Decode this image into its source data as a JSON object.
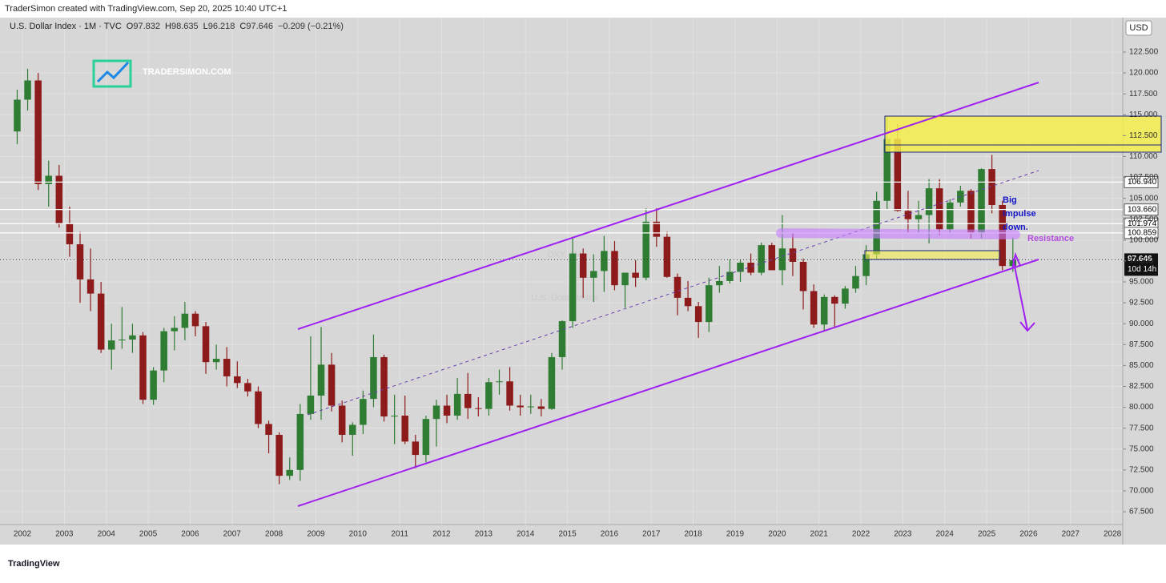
{
  "page": {
    "header": "TraderSimon created with TradingView.com, Sep 20, 2025 10:40 UTC+1",
    "logo": "TRADERSIMON.COM",
    "brand": "TradingView"
  },
  "chart_data": {
    "type": "candlestick",
    "symbol": "U.S. Dollar Index · 1M · TVC",
    "legend": [
      {
        "label": "O",
        "value": "97.832"
      },
      {
        "label": "H",
        "value": "98.635"
      },
      {
        "label": "L",
        "value": "96.218"
      },
      {
        "label": "C",
        "value": "97.646"
      },
      {
        "label": "",
        "value": "−0.209 (−0.21%)"
      }
    ],
    "watermark": [
      "DXY, 1M",
      "U.S. Dollar Index"
    ],
    "currency": "USD",
    "annotations": {
      "impulse": [
        "Big",
        "impulse",
        "down."
      ],
      "resistance": "Resistance"
    },
    "up_color": "#2e7d32",
    "down_color": "#8e1b1b",
    "grid": true,
    "xlim": [
      2001.465,
      2028.246
    ],
    "xticks": [
      2002,
      2003,
      2004,
      2005,
      2006,
      2007,
      2008,
      2009,
      2010,
      2011,
      2012,
      2013,
      2014,
      2015,
      2016,
      2017,
      2018,
      2019,
      2020,
      2021,
      2022,
      2023,
      2024,
      2025,
      2026,
      2027,
      2028
    ],
    "ylim": [
      65.97,
      126.62
    ],
    "yticks": [
      {
        "value": 67.5,
        "label": "67.500"
      },
      {
        "value": 70,
        "label": "70.000"
      },
      {
        "value": 72.5,
        "label": "72.500"
      },
      {
        "value": 75,
        "label": "75.000"
      },
      {
        "value": 77.5,
        "label": "77.500"
      },
      {
        "value": 80,
        "label": "80.000"
      },
      {
        "value": 82.5,
        "label": "82.500"
      },
      {
        "value": 85,
        "label": "85.000"
      },
      {
        "value": 87.5,
        "label": "87.500"
      },
      {
        "value": 90,
        "label": "90.000"
      },
      {
        "value": 92.5,
        "label": "92.500"
      },
      {
        "value": 95,
        "label": "95.000"
      },
      {
        "value": 97.5,
        "label": "97.500"
      },
      {
        "value": 100,
        "label": "100.000"
      },
      {
        "value": 102.5,
        "label": "102.500"
      },
      {
        "value": 105,
        "label": "105.000"
      },
      {
        "value": 107.5,
        "label": "107.500"
      },
      {
        "value": 110,
        "label": "110.000"
      },
      {
        "value": 112.5,
        "label": "112.500"
      },
      {
        "value": 115,
        "label": "115.000"
      },
      {
        "value": 117.5,
        "label": "117.500"
      },
      {
        "value": 120,
        "label": "120.000"
      },
      {
        "value": 122.5,
        "label": "122.500"
      }
    ],
    "price_lines": [
      {
        "value": 106.94,
        "label": "106.940"
      },
      {
        "value": 103.66,
        "label": "103.660"
      },
      {
        "value": 101.974,
        "label": "101.974"
      },
      {
        "value": 100.859,
        "label": "100.859"
      }
    ],
    "last_price": {
      "value": 97.646,
      "label": "97.646",
      "countdown": "10d 14h"
    },
    "x": [
      2001.75,
      2002,
      2002.25,
      2002.5,
      2002.75,
      2003,
      2003.25,
      2003.5,
      2003.75,
      2004,
      2004.25,
      2004.5,
      2004.75,
      2005,
      2005.25,
      2005.5,
      2005.75,
      2006,
      2006.25,
      2006.5,
      2006.75,
      2007,
      2007.25,
      2007.5,
      2007.75,
      2008,
      2008.25,
      2008.5,
      2008.75,
      2009,
      2009.25,
      2009.5,
      2009.75,
      2010,
      2010.25,
      2010.5,
      2010.75,
      2011,
      2011.25,
      2011.5,
      2011.75,
      2012,
      2012.25,
      2012.5,
      2012.75,
      2013,
      2013.25,
      2013.5,
      2013.75,
      2014,
      2014.25,
      2014.5,
      2014.75,
      2015,
      2015.25,
      2015.5,
      2015.75,
      2016,
      2016.25,
      2016.5,
      2016.75,
      2017,
      2017.25,
      2017.5,
      2017.75,
      2018,
      2018.25,
      2018.5,
      2018.75,
      2019,
      2019.25,
      2019.5,
      2019.75,
      2020,
      2020.25,
      2020.5,
      2020.75,
      2021,
      2021.25,
      2021.5,
      2021.75,
      2022,
      2022.25,
      2022.5,
      2022.75,
      2023,
      2023.25,
      2023.5,
      2023.75,
      2024,
      2024.25,
      2024.5,
      2024.75,
      2025,
      2025.25,
      2025.5
    ],
    "open": [
      113.0,
      116.8,
      119.1,
      106.7,
      107.7,
      102.0,
      99.5,
      95.3,
      93.6,
      86.9,
      88.0,
      88.1,
      88.6,
      80.9,
      84.4,
      89.1,
      89.5,
      91.2,
      89.7,
      85.4,
      85.8,
      83.7,
      82.9,
      81.9,
      78.0,
      76.7,
      71.8,
      72.5,
      79.2,
      81.4,
      85.1,
      80.2,
      76.7,
      77.9,
      81.0,
      86.0,
      78.9,
      79.0,
      75.9,
      74.3,
      78.6,
      80.2,
      79.0,
      81.6,
      79.9,
      79.8,
      83.0,
      83.1,
      80.2,
      80.0,
      80.1,
      79.8,
      86.0,
      90.3,
      98.4,
      95.5,
      96.3,
      98.7,
      94.6,
      96.1,
      95.5,
      102.2,
      100.4,
      95.6,
      93.1,
      92.1,
      90.2,
      94.6,
      95.1,
      96.2,
      97.3,
      96.1,
      99.4,
      96.4,
      99.0,
      97.4,
      93.9,
      89.9,
      93.2,
      92.4,
      94.2,
      95.7,
      98.3,
      104.7,
      112.1,
      103.5,
      102.5,
      103.0,
      106.2,
      101.3,
      104.5,
      105.9,
      100.8,
      108.5,
      104.2,
      96.9
    ],
    "high": [
      118.0,
      120.5,
      120.0,
      109.5,
      109.0,
      104.0,
      101.0,
      99.0,
      95.0,
      90.0,
      92.0,
      90.0,
      89.0,
      84.8,
      89.5,
      90.9,
      92.6,
      91.5,
      90.2,
      87.5,
      87.2,
      85.5,
      83.4,
      82.5,
      78.4,
      77.0,
      74.0,
      80.4,
      88.5,
      89.6,
      86.5,
      80.8,
      78.2,
      82.0,
      88.7,
      86.3,
      81.5,
      81.4,
      76.7,
      79.0,
      80.9,
      81.5,
      83.5,
      84.1,
      81.2,
      83.5,
      84.5,
      84.8,
      81.5,
      81.5,
      81.0,
      86.5,
      90.4,
      100.4,
      99.0,
      98.3,
      100.5,
      99.9,
      96.0,
      97.6,
      103.8,
      103.8,
      101.0,
      96.0,
      95.1,
      92.6,
      95.5,
      96.9,
      97.7,
      97.7,
      98.4,
      99.7,
      99.7,
      103.0,
      100.9,
      97.8,
      94.7,
      93.5,
      93.4,
      94.5,
      96.9,
      99.4,
      105.8,
      114.8,
      113.9,
      105.9,
      104.7,
      107.3,
      107.3,
      104.9,
      106.5,
      106.1,
      108.6,
      110.2,
      104.7,
      100.3
    ],
    "low": [
      111.5,
      115.5,
      106.0,
      104.0,
      101.5,
      98.0,
      92.5,
      91.5,
      86.5,
      84.5,
      87.0,
      86.5,
      80.4,
      80.3,
      83.0,
      86.8,
      88.0,
      88.5,
      84.0,
      84.5,
      82.5,
      82.3,
      81.3,
      77.5,
      74.5,
      70.8,
      71.3,
      71.2,
      78.5,
      78.5,
      79.5,
      75.8,
      74.2,
      76.8,
      80.0,
      78.3,
      75.6,
      75.6,
      72.7,
      73.4,
      75.3,
      78.1,
      78.5,
      78.6,
      78.9,
      79.0,
      81.5,
      79.6,
      79.0,
      79.2,
      78.9,
      79.7,
      84.5,
      89.5,
      93.1,
      92.6,
      93.8,
      94.0,
      91.9,
      94.4,
      95.2,
      99.2,
      95.5,
      91.0,
      91.5,
      88.3,
      89.0,
      93.7,
      94.8,
      95.0,
      95.8,
      95.8,
      96.4,
      94.6,
      95.7,
      91.7,
      89.5,
      89.2,
      89.5,
      91.8,
      93.7,
      94.6,
      97.7,
      103.7,
      103.4,
      100.8,
      100.8,
      99.6,
      100.6,
      100.8,
      104.0,
      100.2,
      100.2,
      103.2,
      96.4,
      96.2
    ],
    "close": [
      116.8,
      119.1,
      106.7,
      107.7,
      102.0,
      99.5,
      95.3,
      93.6,
      86.9,
      88.0,
      88.1,
      88.6,
      80.9,
      84.4,
      89.1,
      89.5,
      91.2,
      89.7,
      85.4,
      85.8,
      83.7,
      82.9,
      81.9,
      78.0,
      76.7,
      71.8,
      72.5,
      79.2,
      81.4,
      85.1,
      80.2,
      76.7,
      77.9,
      81.0,
      86.0,
      78.9,
      79.0,
      75.9,
      74.3,
      78.6,
      80.2,
      79.0,
      81.6,
      79.9,
      79.8,
      83.0,
      83.1,
      80.2,
      80.0,
      80.1,
      79.8,
      86.0,
      90.3,
      98.4,
      95.5,
      96.3,
      98.7,
      94.6,
      96.1,
      95.5,
      102.2,
      100.4,
      95.6,
      93.1,
      92.1,
      90.2,
      94.6,
      95.1,
      96.2,
      97.3,
      96.1,
      99.4,
      96.4,
      99.0,
      97.4,
      93.9,
      89.9,
      93.2,
      92.4,
      94.2,
      95.7,
      98.3,
      104.7,
      112.1,
      103.5,
      102.5,
      103.0,
      106.2,
      101.3,
      104.5,
      105.9,
      100.8,
      108.5,
      104.2,
      96.9,
      97.6
    ]
  }
}
